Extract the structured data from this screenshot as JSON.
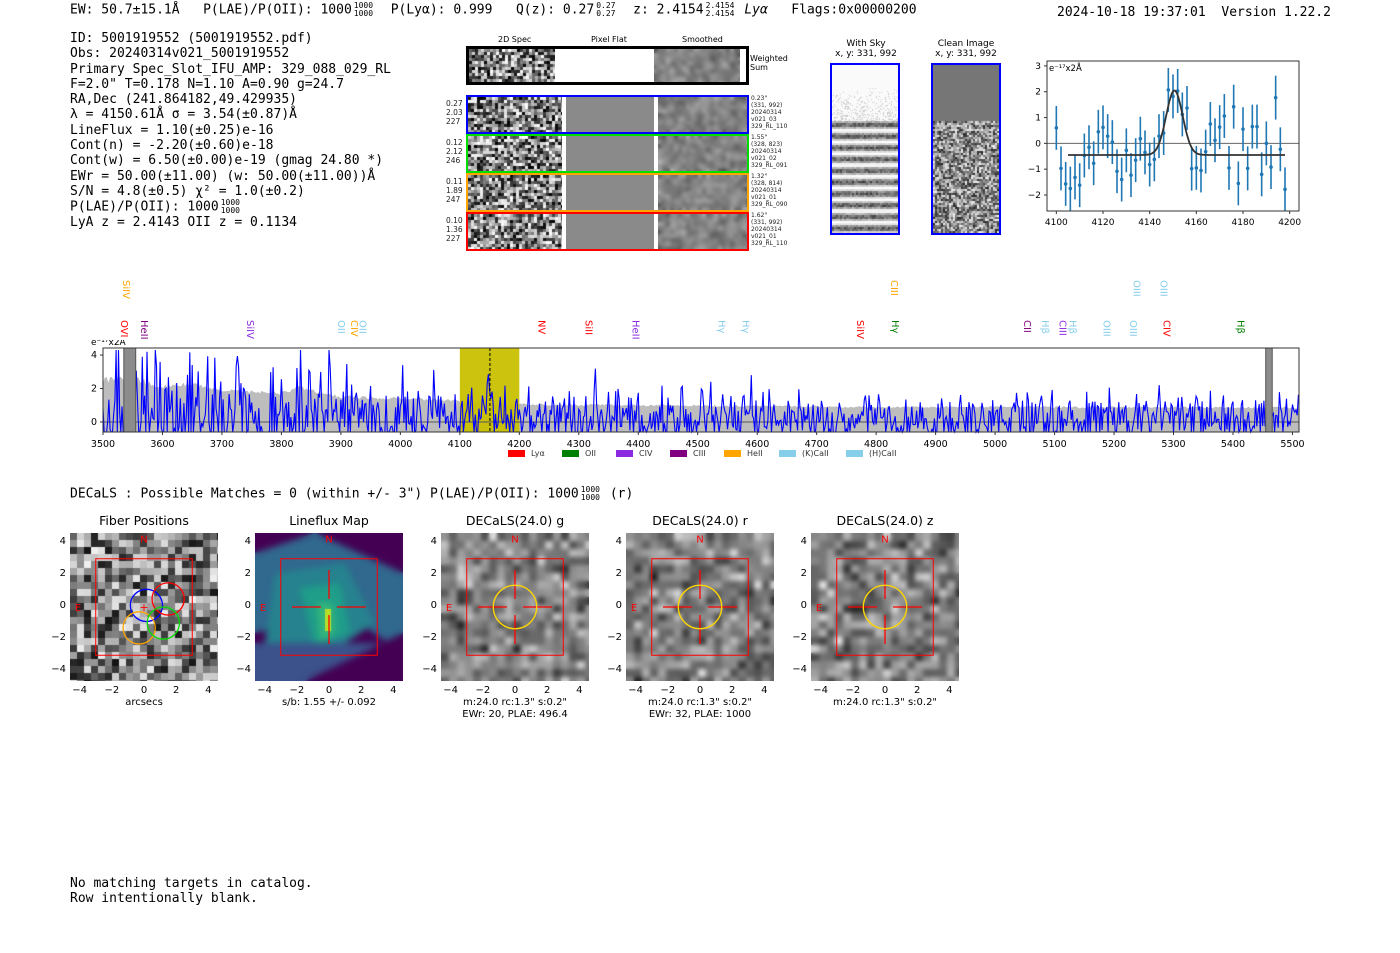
{
  "header": {
    "ew": "EW: 50.7±15.1Å",
    "plae_label": "P(LAE)/P(OII): 1000",
    "plae_hi": "1000",
    "plae_lo": "1000",
    "plya": "P(Lyα): 0.999",
    "qz_label": "Q(z): 0.27",
    "qz_hi": "0.27",
    "qz_lo": "0.27",
    "z_label": "z: 2.4154",
    "z_hi": "2.4154",
    "z_lo": "2.4154",
    "z_line": "Lyα",
    "flags": "Flags:0x00000200",
    "timestamp": "2024-10-18 19:37:01",
    "version": "Version 1.22.2"
  },
  "info": {
    "lines": [
      "ID: 5001919552 (5001919552.pdf)",
      "Obs: 20240314v021_5001919552",
      "Primary Spec_Slot_IFU_AMP: 329_088_029_RL",
      "F=2.0\"  T=0.178  N=1.10  A=0.90  g=24.7",
      "RA,Dec (241.864182,49.429935)",
      "λ = 4150.61Å  σ = 3.54(±0.87)Å",
      "LineFlux = 1.10(±0.25)e-16",
      "Cont(n) = -2.20(±0.60)e-18",
      "Cont(w) = 6.50(±0.00)e-19 (gmag 24.80 *)",
      "EWr = 50.00(±11.00) (w: 50.00(±11.00))Å",
      "S/N = 4.8(±0.5)  χ² = 1.0(±0.2)"
    ],
    "plae_label": "P(LAE)/P(OII): 1000",
    "plae_hi": "1000",
    "plae_lo": "1000",
    "z_line": "LyA z = 2.4143  OII z = 0.1134"
  },
  "spec2d": {
    "headers": [
      "2D Spec",
      "Pixel Flat",
      "Smoothed"
    ],
    "weighted_label": "Weighted Sum",
    "rows": [
      {
        "color": "#0000ff",
        "left": [
          "0.27",
          "2.03",
          "227"
        ],
        "right": [
          "0.23\"",
          "(331, 992)",
          "20240314",
          "v021_03",
          "329_RL_110"
        ]
      },
      {
        "color": "#00dd00",
        "left": [
          "0.12",
          "2.12",
          "246"
        ],
        "right": [
          "1.55\"",
          "(328, 823)",
          "20240314",
          "v021_02",
          "329_RL_091"
        ]
      },
      {
        "color": "#ffa500",
        "left": [
          "0.11",
          "1.89",
          "247"
        ],
        "right": [
          "1.32\"",
          "(328, 814)",
          "20240314",
          "v021_01",
          "329_RL_090"
        ]
      },
      {
        "color": "#ff0000",
        "left": [
          "0.10",
          "1.36",
          "227"
        ],
        "right": [
          "1.62\"",
          "(331, 992)",
          "20240314",
          "v021_01",
          "329_RL_110"
        ]
      }
    ]
  },
  "sky": {
    "with_sky": "With Sky",
    "with_sky_xy": "x, y: 331, 992",
    "clean": "Clean Image",
    "clean_xy": "x, y: 331, 992"
  },
  "cutouts": {
    "title": "DECaLS : Possible Matches = 0 (within +/- 3\")  P(LAE)/P(OII): 1000",
    "title_hi": "1000",
    "title_lo": "1000",
    "title_band": "(r)",
    "panels": [
      {
        "title": "Fiber Positions",
        "caption": [
          "arcsecs"
        ]
      },
      {
        "title": "Lineflux Map",
        "caption": [
          "s/b: 1.55 +/- 0.092"
        ]
      },
      {
        "title": "DECaLS(24.0) g",
        "caption": [
          "m:24.0 rc:1.3\"  s:0.2\"",
          "EWr: 20, PLAE: 496.4"
        ]
      },
      {
        "title": "DECaLS(24.0) r",
        "caption": [
          "m:24.0 rc:1.3\"  s:0.2\"",
          "EWr: 32, PLAE: 1000"
        ]
      },
      {
        "title": "DECaLS(24.0) z",
        "caption": [
          "m:24.0 rc:1.3\"  s:0.2\""
        ]
      }
    ],
    "compass": {
      "n": "N",
      "e": "E"
    },
    "ticks": [
      "−4",
      "−2",
      "0",
      "2",
      "4"
    ]
  },
  "footer": [
    "No matching targets in catalog.",
    "Row intentionally blank."
  ],
  "chart_data": [
    {
      "type": "scatter",
      "name": "line-fit",
      "ylabel": "e⁻¹⁷x2Å",
      "xlim": [
        4096,
        4204
      ],
      "ylim": [
        -2.62,
        3.19
      ],
      "xticks": [
        4100,
        4120,
        4140,
        4160,
        4180,
        4200
      ],
      "yticks": [
        -2,
        -1,
        0,
        1,
        2,
        3
      ],
      "x": [
        4100,
        4102,
        4104,
        4106,
        4108,
        4110,
        4112,
        4114,
        4116,
        4118,
        4120,
        4122,
        4124,
        4126,
        4128,
        4130,
        4132,
        4134,
        4136,
        4138,
        4140,
        4142,
        4144,
        4146,
        4148,
        4150,
        4152,
        4154,
        4156,
        4158,
        4160,
        4162,
        4164,
        4166,
        4168,
        4170,
        4172,
        4174,
        4176,
        4178,
        4180,
        4182,
        4184,
        4186,
        4188,
        4190,
        4192,
        4194,
        4196,
        4198
      ],
      "y": [
        0.6,
        -0.97,
        -1.57,
        -1.75,
        -1.32,
        -1.62,
        -0.47,
        -0.15,
        -0.77,
        0.45,
        0.62,
        0.28,
        0.05,
        -1.08,
        -1.4,
        -0.27,
        -1.23,
        -0.65,
        0.18,
        -0.35,
        -0.82,
        -0.62,
        0.28,
        0.4,
        2.07,
        1.82,
        2.03,
        1.12,
        1.37,
        -0.98,
        -0.95,
        -1.05,
        -0.32,
        0.75,
        0.12,
        0.63,
        1.06,
        -0.95,
        1.42,
        -1.55,
        0.55,
        -0.97,
        0.65,
        0.65,
        -1.2,
        0.0,
        -0.92,
        1.77,
        -0.23,
        -1.78
      ],
      "yerr": 0.85,
      "fit": {
        "center": 4150.61,
        "sigma": 3.54,
        "amplitude": 2.5,
        "baseline": -0.45,
        "range": [
          4105,
          4198
        ]
      }
    },
    {
      "type": "line",
      "name": "full-spectrum",
      "ylabel": "e⁻¹⁷x2Å",
      "xlim": [
        3500,
        5511
      ],
      "ylim": [
        -0.6,
        4.42
      ],
      "xticks": [
        3500,
        3600,
        3700,
        3800,
        3900,
        4000,
        4100,
        4200,
        4300,
        4400,
        4500,
        4600,
        4700,
        4800,
        4900,
        5000,
        5100,
        5200,
        5300,
        5400,
        5500
      ],
      "yticks": [
        0,
        2,
        4
      ],
      "error_envelope": [
        [
          3500,
          2.5
        ],
        [
          3550,
          2.6
        ],
        [
          3600,
          2.1
        ],
        [
          3650,
          2.3
        ],
        [
          3700,
          1.9
        ],
        [
          3800,
          1.7
        ],
        [
          3830,
          2.1
        ],
        [
          3900,
          1.5
        ],
        [
          4000,
          1.4
        ],
        [
          4090,
          1.3
        ],
        [
          4100,
          1.2
        ],
        [
          4200,
          1.05
        ],
        [
          4400,
          1.0
        ],
        [
          4600,
          0.95
        ],
        [
          4800,
          0.9
        ],
        [
          5000,
          0.9
        ],
        [
          5500,
          0.85
        ]
      ],
      "spectrum_seed": 7,
      "emission": {
        "center": 4150.61,
        "peak": 2.05,
        "sigma": 3.54
      },
      "highlight": [
        4100,
        4200
      ],
      "line_center": 4150.61,
      "masked": [
        [
          3535,
          3555
        ],
        [
          5455,
          5466
        ]
      ],
      "lines": [
        {
          "name": "SiIV",
          "w": 3539,
          "row": "upper",
          "color": "#ffa500"
        },
        {
          "name": "CIII",
          "w": 4830,
          "row": "upper",
          "color": "#ffa500"
        },
        {
          "name": "OIII",
          "w": 5238,
          "row": "upper",
          "color": "#87ceeb"
        },
        {
          "name": "OIII",
          "w": 5283,
          "row": "upper",
          "color": "#87ceeb"
        },
        {
          "name": "OVI",
          "w": 3535,
          "row": "lower",
          "color": "#ff0000"
        },
        {
          "name": "HeII",
          "w": 3569,
          "row": "lower",
          "color": "#800080"
        },
        {
          "name": "SiIV",
          "w": 3747,
          "row": "lower",
          "color": "#8a2be2"
        },
        {
          "name": "OII",
          "w": 3900,
          "row": "lower",
          "color": "#87ceeb"
        },
        {
          "name": "CIV",
          "w": 3922,
          "row": "lower",
          "color": "#ffa500"
        },
        {
          "name": "OII",
          "w": 3936,
          "row": "lower",
          "color": "#87ceeb"
        },
        {
          "name": "NV",
          "w": 4237,
          "row": "lower",
          "color": "#ff0000"
        },
        {
          "name": "SiII",
          "w": 4316,
          "row": "lower",
          "color": "#ff0000"
        },
        {
          "name": "HeII",
          "w": 4395,
          "row": "lower",
          "color": "#8a2be2"
        },
        {
          "name": "Hγ",
          "w": 4540,
          "row": "lower",
          "color": "#87ceeb"
        },
        {
          "name": "Hγ",
          "w": 4580,
          "row": "lower",
          "color": "#87ceeb"
        },
        {
          "name": "SiIV",
          "w": 4773,
          "row": "lower",
          "color": "#ff0000"
        },
        {
          "name": "Hγ",
          "w": 4832,
          "row": "lower",
          "color": "#008000"
        },
        {
          "name": "CII",
          "w": 5054,
          "row": "lower",
          "color": "#800080"
        },
        {
          "name": "Hβ",
          "w": 5084,
          "row": "lower",
          "color": "#87ceeb"
        },
        {
          "name": "CIII",
          "w": 5113,
          "row": "lower",
          "color": "#8a2be2"
        },
        {
          "name": "Hβ",
          "w": 5130,
          "row": "lower",
          "color": "#87ceeb"
        },
        {
          "name": "OIII",
          "w": 5187,
          "row": "lower",
          "color": "#87ceeb"
        },
        {
          "name": "OIII",
          "w": 5232,
          "row": "lower",
          "color": "#87ceeb"
        },
        {
          "name": "CIV",
          "w": 5288,
          "row": "lower",
          "color": "#ff0000"
        },
        {
          "name": "Hβ",
          "w": 5413,
          "row": "lower",
          "color": "#008000"
        }
      ],
      "legend": [
        {
          "label": "Lyα",
          "color": "#ff0000"
        },
        {
          "label": "OII",
          "color": "#008000"
        },
        {
          "label": "CIV",
          "color": "#8a2be2"
        },
        {
          "label": "CIII",
          "color": "#800080"
        },
        {
          "label": "HeII",
          "color": "#ffa500"
        },
        {
          "label": "(K)CaII",
          "color": "#87ceeb"
        },
        {
          "label": "(H)CaII",
          "color": "#87ceeb"
        }
      ]
    }
  ]
}
